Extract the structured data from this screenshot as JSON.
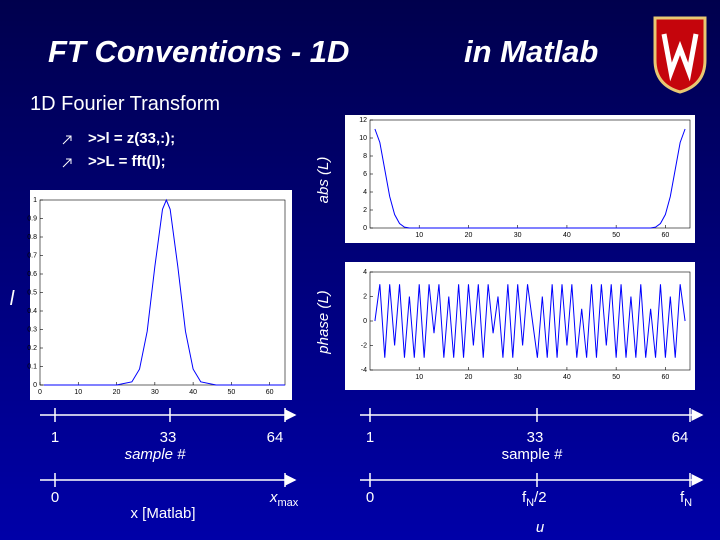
{
  "slide": {
    "title": "FT Conventions - 1D",
    "title_right": "in Matlab",
    "subtitle": "1D Fourier Transform",
    "bullets": [
      ">>l = z(33,:);",
      ">>L = fft(l);"
    ],
    "left_axes": {
      "index_labels": [
        "1",
        "33",
        "64"
      ],
      "index_name": "sample #",
      "coord_start": "0",
      "coord_name": "x [Matlab]",
      "coord_end": {
        "base": "x",
        "sub": "max"
      }
    },
    "right_axes": {
      "index_labels": [
        "1",
        "33",
        "64"
      ],
      "index_name": "sample #",
      "coord_start": "0",
      "coord_mid": {
        "base": "f",
        "sub": "N",
        "rest": "/2"
      },
      "coord_end": {
        "base": "f",
        "sub": "N"
      },
      "coord_name": "u"
    }
  },
  "chart_data": [
    {
      "type": "line",
      "ylabel": "l",
      "color": "#0000ff",
      "x": [
        1,
        10,
        20,
        24,
        26,
        28,
        30,
        32,
        33,
        34,
        36,
        38,
        40,
        42,
        46,
        50,
        64
      ],
      "values": [
        0,
        0,
        0,
        0.017,
        0.086,
        0.29,
        0.64,
        0.95,
        1,
        0.95,
        0.64,
        0.29,
        0.086,
        0.017,
        0,
        0,
        0
      ],
      "xlim": [
        0,
        64
      ],
      "xticks": [
        0,
        10,
        20,
        30,
        40,
        50,
        60
      ],
      "ylim": [
        0,
        1
      ],
      "yticks": [
        0,
        0.1,
        0.2,
        0.3,
        0.4,
        0.5,
        0.6,
        0.7,
        0.8,
        0.9,
        1
      ]
    },
    {
      "type": "line",
      "ylabel": "abs (L)",
      "color": "#0000ff",
      "x": [
        1,
        2,
        3,
        4,
        5,
        6,
        7,
        8,
        10,
        20,
        30,
        40,
        50,
        57,
        58,
        59,
        60,
        61,
        62,
        63,
        64
      ],
      "values": [
        11,
        9.5,
        6.5,
        3.5,
        1.5,
        0.5,
        0.1,
        0,
        0,
        0,
        0,
        0,
        0,
        0,
        0.1,
        0.5,
        1.5,
        3.5,
        6.5,
        9.5,
        11
      ],
      "xlim": [
        0,
        65
      ],
      "xticks": [
        10,
        20,
        30,
        40,
        50,
        60
      ],
      "ylim": [
        0,
        12
      ],
      "yticks": [
        0,
        2,
        4,
        6,
        8,
        10,
        12
      ]
    },
    {
      "type": "line",
      "ylabel": "phase (L)",
      "color": "#0000ff",
      "x": [
        1,
        2,
        3,
        4,
        5,
        6,
        7,
        8,
        9,
        10,
        11,
        12,
        13,
        14,
        15,
        16,
        17,
        18,
        19,
        20,
        21,
        22,
        23,
        24,
        25,
        26,
        27,
        28,
        29,
        30,
        31,
        32,
        33,
        34,
        35,
        36,
        37,
        38,
        39,
        40,
        41,
        42,
        43,
        44,
        45,
        46,
        47,
        48,
        49,
        50,
        51,
        52,
        53,
        54,
        55,
        56,
        57,
        58,
        59,
        60,
        61,
        62,
        63,
        64
      ],
      "values": [
        0,
        3,
        -3,
        3,
        -2,
        3,
        -3,
        2,
        -3,
        3,
        -3,
        3,
        -1,
        3,
        -3,
        2,
        -3,
        3,
        -3,
        3,
        -2,
        3,
        -3,
        3,
        -1,
        2,
        -3,
        3,
        -3,
        3,
        -2,
        3,
        0,
        -3,
        2,
        -3,
        3,
        -3,
        3,
        -2,
        3,
        -3,
        1,
        -3,
        3,
        -3,
        3,
        -2,
        3,
        -3,
        3,
        -3,
        2,
        -3,
        3,
        -3,
        1,
        -3,
        3,
        -3,
        2,
        -3,
        3,
        0
      ],
      "xlim": [
        0,
        65
      ],
      "xticks": [
        10,
        20,
        30,
        40,
        50,
        60
      ],
      "ylim": [
        -4,
        4
      ],
      "yticks": [
        -4,
        -2,
        0,
        2,
        4
      ]
    }
  ]
}
